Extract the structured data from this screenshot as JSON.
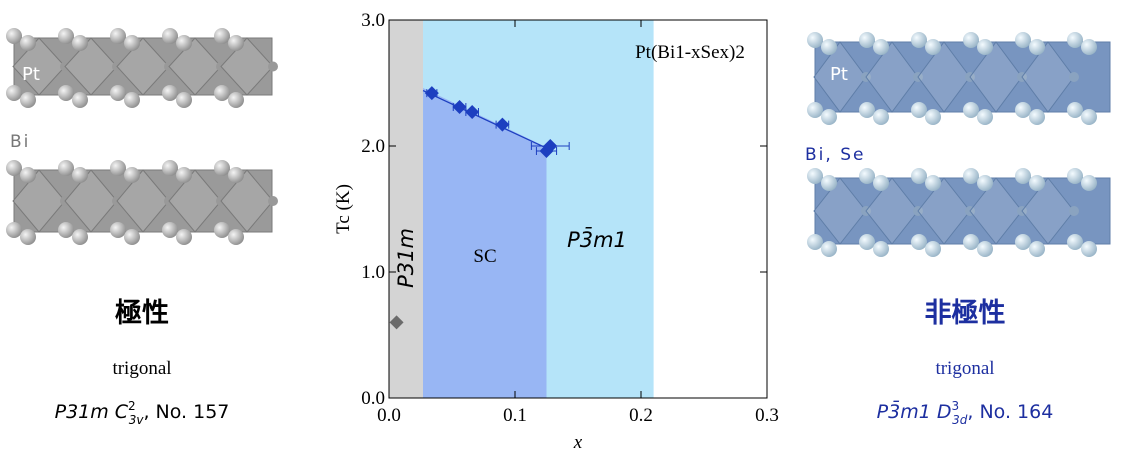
{
  "chart_data": {
    "type": "scatter",
    "annotation": "Pt(Bi1-xSex)2",
    "xlabel": "x",
    "ylabel": "Tc (K)",
    "xlim": [
      0,
      0.3
    ],
    "ylim": [
      0,
      3
    ],
    "xticks": [
      {
        "value": 0,
        "label": "0.0"
      },
      0.1,
      0.2,
      0.3
    ],
    "yticks": [
      {
        "value": 0,
        "label": "0.0"
      },
      {
        "value": 1,
        "label": "1.0"
      },
      {
        "value": 2,
        "label": "2.0"
      },
      {
        "value": 3,
        "label": "3.0"
      }
    ],
    "regions": [
      {
        "label": "P31m",
        "x": [
          0,
          0.027
        ],
        "color": "#d4d4d4"
      },
      {
        "label": "P3̄m1",
        "x": [
          0.027,
          0.21
        ],
        "color": "#b5e4f9"
      },
      {
        "label": "SC",
        "x": [
          0.027,
          0.125
        ],
        "y_top": [
          2.46,
          1.99
        ],
        "color": "#98b6f4"
      }
    ],
    "series": [
      {
        "color": "#1d3fc0",
        "x": [
          0.034,
          0.056,
          0.066,
          0.09,
          0.125,
          0.128
        ],
        "values": [
          2.42,
          2.31,
          2.27,
          2.17,
          1.96,
          2.0
        ],
        "xerr": [
          0.004,
          0.005,
          0.005,
          0.005,
          0.008,
          0.015
        ]
      },
      {
        "color": "#6b6b6b",
        "x": [
          0.006
        ],
        "values": [
          0.6
        ]
      }
    ],
    "fit": {
      "color": "#1d3fc0",
      "x": [
        0.027,
        0.13
      ],
      "values": [
        2.44,
        1.96
      ]
    }
  },
  "left_panel": {
    "atom1": "Pt",
    "atom2": "Bi",
    "title": "極性",
    "system": "trigonal",
    "group": "P31m",
    "schoenflies": "C",
    "sup": "2",
    "sub": "3v",
    "number": ", No. 157"
  },
  "right_panel": {
    "atom1": "Pt",
    "atom2": "Bi, Se",
    "title": "非極性",
    "system": "trigonal",
    "group": "P3̄m1",
    "schoenflies": "D",
    "sup": "3",
    "sub": "3d",
    "number": ", No. 164"
  }
}
